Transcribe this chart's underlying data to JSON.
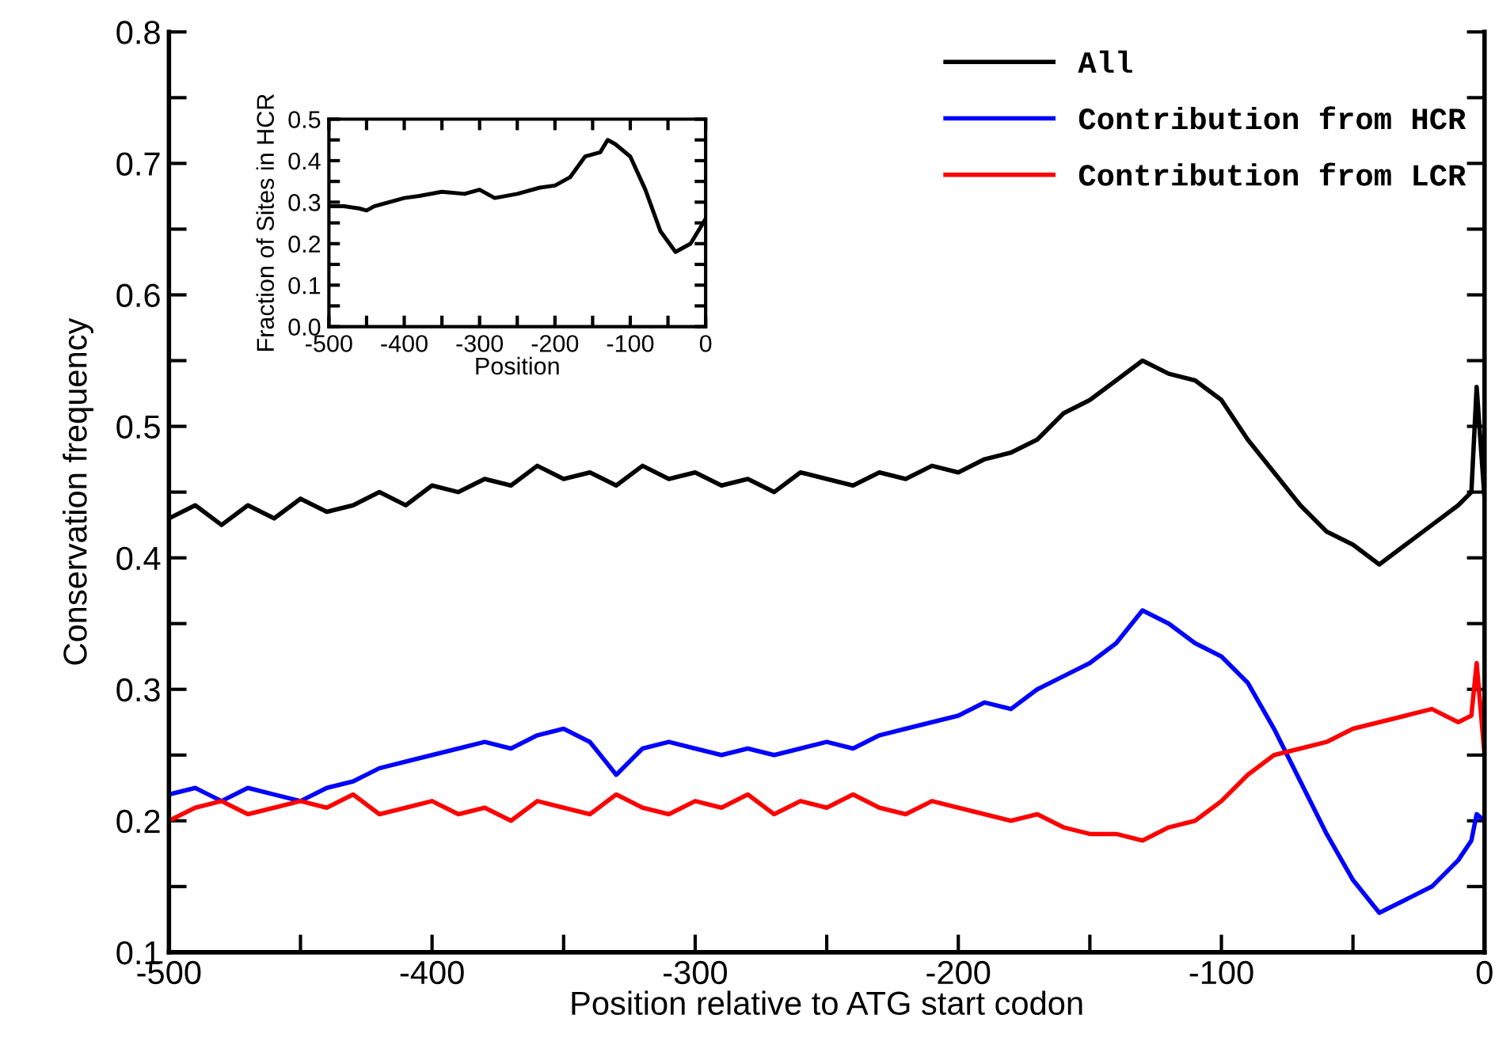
{
  "chart_data": [
    {
      "type": "line",
      "xlabel": "Position relative to ATG start codon",
      "ylabel": "Conservation frequency",
      "legend": "top right",
      "x": [
        -500,
        -490,
        -480,
        -470,
        -460,
        -450,
        -440,
        -430,
        -420,
        -410,
        -400,
        -390,
        -380,
        -370,
        -360,
        -350,
        -340,
        -330,
        -320,
        -310,
        -300,
        -290,
        -280,
        -270,
        -260,
        -250,
        -240,
        -230,
        -220,
        -210,
        -200,
        -190,
        -180,
        -170,
        -160,
        -150,
        -140,
        -130,
        -120,
        -110,
        -100,
        -90,
        -80,
        -70,
        -60,
        -50,
        -40,
        -30,
        -20,
        -10,
        -5,
        -3,
        0
      ],
      "series": [
        {
          "name": "All",
          "color": "#000000",
          "values": [
            0.43,
            0.44,
            0.425,
            0.44,
            0.43,
            0.445,
            0.435,
            0.44,
            0.45,
            0.44,
            0.455,
            0.45,
            0.46,
            0.455,
            0.47,
            0.46,
            0.465,
            0.455,
            0.47,
            0.46,
            0.465,
            0.455,
            0.46,
            0.45,
            0.465,
            0.46,
            0.455,
            0.465,
            0.46,
            0.47,
            0.465,
            0.475,
            0.48,
            0.49,
            0.51,
            0.52,
            0.535,
            0.55,
            0.54,
            0.535,
            0.52,
            0.49,
            0.465,
            0.44,
            0.42,
            0.41,
            0.395,
            0.41,
            0.425,
            0.44,
            0.45,
            0.53,
            0.445
          ]
        },
        {
          "name": "Contribution from HCR",
          "color": "#0000ff",
          "values": [
            0.22,
            0.225,
            0.215,
            0.225,
            0.22,
            0.215,
            0.225,
            0.23,
            0.24,
            0.245,
            0.25,
            0.255,
            0.26,
            0.255,
            0.265,
            0.27,
            0.26,
            0.235,
            0.255,
            0.26,
            0.255,
            0.25,
            0.255,
            0.25,
            0.255,
            0.26,
            0.255,
            0.265,
            0.27,
            0.275,
            0.28,
            0.29,
            0.285,
            0.3,
            0.31,
            0.32,
            0.335,
            0.36,
            0.35,
            0.335,
            0.325,
            0.305,
            0.27,
            0.23,
            0.19,
            0.155,
            0.13,
            0.14,
            0.15,
            0.17,
            0.185,
            0.205,
            0.2
          ]
        },
        {
          "name": "Contribution from LCR",
          "color": "#ff0000",
          "values": [
            0.2,
            0.21,
            0.215,
            0.205,
            0.21,
            0.215,
            0.21,
            0.22,
            0.205,
            0.21,
            0.215,
            0.205,
            0.21,
            0.2,
            0.215,
            0.21,
            0.205,
            0.22,
            0.21,
            0.205,
            0.215,
            0.21,
            0.22,
            0.205,
            0.215,
            0.21,
            0.22,
            0.21,
            0.205,
            0.215,
            0.21,
            0.205,
            0.2,
            0.205,
            0.195,
            0.19,
            0.19,
            0.185,
            0.195,
            0.2,
            0.215,
            0.235,
            0.25,
            0.255,
            0.26,
            0.27,
            0.275,
            0.28,
            0.285,
            0.275,
            0.28,
            0.32,
            0.25
          ]
        }
      ],
      "xlim": [
        -500,
        0
      ],
      "ylim": [
        0.1,
        0.8
      ],
      "xticks": [
        -500,
        {
          "value": -450,
          "label": null
        },
        -400,
        {
          "value": -350,
          "label": null
        },
        -300,
        {
          "value": -250,
          "label": null
        },
        -200,
        {
          "value": -150,
          "label": null
        },
        -100,
        {
          "value": -50,
          "label": null
        },
        0
      ],
      "yticks": [
        0.1,
        {
          "value": 0.15,
          "label": null
        },
        0.2,
        {
          "value": 0.25,
          "label": null
        },
        0.3,
        {
          "value": 0.35,
          "label": null
        },
        0.4,
        {
          "value": 0.45,
          "label": null
        },
        0.5,
        {
          "value": 0.55,
          "label": null
        },
        0.6,
        {
          "value": 0.65,
          "label": null
        },
        0.7,
        {
          "value": 0.75,
          "label": null
        },
        0.8
      ]
    },
    {
      "type": "line",
      "xlabel": "Position",
      "ylabel": "Fraction of Sites in HCR",
      "x": [
        -500,
        -480,
        -460,
        -450,
        -440,
        -420,
        -400,
        -380,
        -350,
        -320,
        -300,
        -280,
        -250,
        -220,
        -200,
        -180,
        -160,
        -140,
        -130,
        -120,
        -100,
        -80,
        -60,
        -40,
        -20,
        0
      ],
      "series": [
        {
          "color": "#000000",
          "values": [
            0.29,
            0.29,
            0.285,
            0.28,
            0.29,
            0.3,
            0.31,
            0.315,
            0.325,
            0.32,
            0.33,
            0.31,
            0.32,
            0.335,
            0.34,
            0.36,
            0.41,
            0.42,
            0.45,
            0.44,
            0.41,
            0.33,
            0.23,
            0.18,
            0.2,
            0.26
          ]
        }
      ],
      "xlim": [
        -500,
        0
      ],
      "ylim": [
        0,
        0.5
      ],
      "xticks": [
        -500,
        {
          "value": -450,
          "label": null
        },
        -400,
        {
          "value": -350,
          "label": null
        },
        -300,
        {
          "value": -250,
          "label": null
        },
        -200,
        {
          "value": -150,
          "label": null
        },
        -100,
        {
          "value": -50,
          "label": null
        },
        0
      ],
      "yticks": [
        {
          "value": 0,
          "label": "0.0"
        },
        {
          "value": 0.05,
          "label": null
        },
        0.1,
        {
          "value": 0.15,
          "label": null
        },
        0.2,
        {
          "value": 0.25,
          "label": null
        },
        0.3,
        {
          "value": 0.35,
          "label": null
        },
        0.4,
        {
          "value": 0.45,
          "label": null
        },
        0.5
      ]
    }
  ]
}
